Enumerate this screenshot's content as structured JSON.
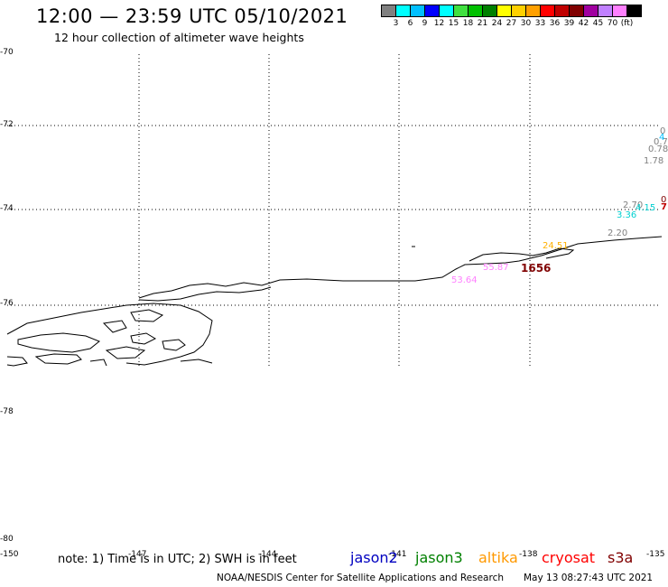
{
  "title": "12:00 — 23:59 UTC 05/10/2021",
  "subtitle": "12 hour collection of altimeter wave heights",
  "colorbar": {
    "colors": [
      "#808080",
      "#00ffff",
      "#00bfff",
      "#0000ff",
      "#00ffff",
      "#40e040",
      "#00c000",
      "#008000",
      "#ffff00",
      "#ffd000",
      "#ffa000",
      "#ff0000",
      "#c00000",
      "#800000",
      "#a000a0",
      "#c080ff",
      "#ff80ff",
      "#000000"
    ],
    "labels": [
      "3",
      "6",
      "9",
      "12",
      "15",
      "18",
      "21",
      "24",
      "27",
      "30",
      "33",
      "36",
      "39",
      "42",
      "45",
      "70",
      "(ft)"
    ]
  },
  "y_labels": [
    "-70",
    "-72",
    "-74",
    "-76",
    "-78",
    "-80"
  ],
  "x_labels": [
    "-150",
    "-147",
    "-144",
    "-141",
    "-138",
    "-135"
  ],
  "wave_labels": [
    {
      "text": "1.78",
      "color": "#808080"
    },
    {
      "text": "0.78",
      "color": "#808080"
    },
    {
      "text": "0.7",
      "color": "#808080"
    },
    {
      "text": "0",
      "color": "#808080"
    },
    {
      "text": "4",
      "color": "#00bfff"
    },
    {
      "text": "2.70",
      "color": "#808080"
    },
    {
      "text": "4.15",
      "color": "#00d0d0"
    },
    {
      "text": "3.36",
      "color": "#00d0d0"
    },
    {
      "text": "0",
      "color": "#800000"
    },
    {
      "text": "7",
      "color": "#c00000"
    },
    {
      "text": "2.20",
      "color": "#808080"
    },
    {
      "text": "24.51",
      "color": "#ffb000"
    },
    {
      "text": "55.87",
      "color": "#ff80ff"
    },
    {
      "text": "53.64",
      "color": "#ff80ff"
    },
    {
      "text": "1656",
      "color": "#800000"
    }
  ],
  "note": "note: 1) Time is in UTC; 2) SWH is in feet",
  "legend": [
    {
      "name": "jason2",
      "color": "#0000c0"
    },
    {
      "name": "jason3",
      "color": "#008000"
    },
    {
      "name": "altika",
      "color": "#ff9900"
    },
    {
      "name": "cryosat",
      "color": "#ff0000"
    },
    {
      "name": "s3a",
      "color": "#800000"
    }
  ],
  "credit": "NOAA/NESDIS Center for Satellite Applications and Research",
  "timestamp": "May 13 08:27:43 UTC 2021"
}
